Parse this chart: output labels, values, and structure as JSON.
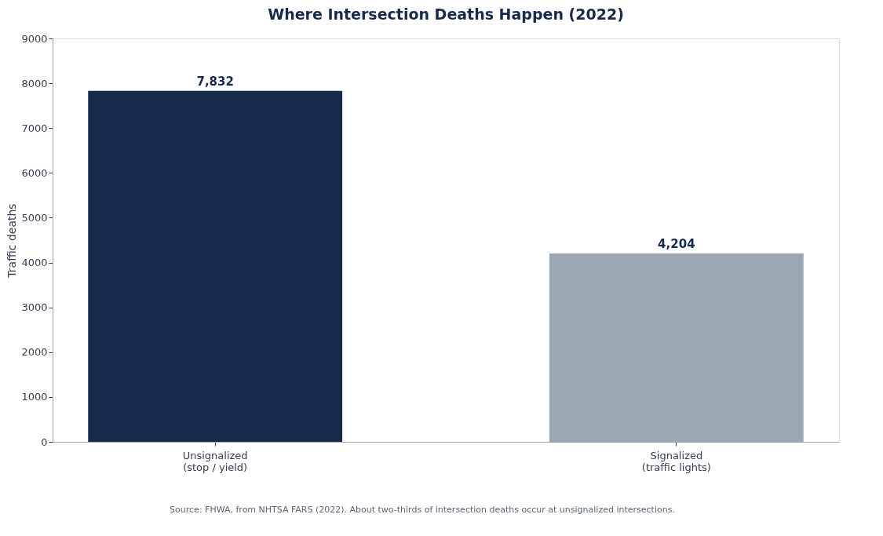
{
  "chart_data": {
    "type": "bar",
    "title": "Where Intersection Deaths Happen (2022)",
    "ylabel": "Traffic deaths",
    "categories": [
      "Unsignalized\n(stop / yield)",
      "Signalized\n(traffic lights)"
    ],
    "values": [
      7832,
      4204
    ],
    "colors": [
      "#172a4c",
      "#9ca7b4"
    ],
    "value_labels": [
      "7,832",
      "4,204"
    ],
    "ylim": [
      0,
      9000
    ],
    "yticks": [
      0,
      1000,
      2000,
      3000,
      4000,
      5000,
      6000,
      7000,
      8000,
      9000
    ],
    "grid": false,
    "legend": false,
    "annotations": [
      "Source: FHWA, from NHTSA FARS (2022). About two-thirds of intersection deaths occur at unsignalized intersections."
    ]
  }
}
